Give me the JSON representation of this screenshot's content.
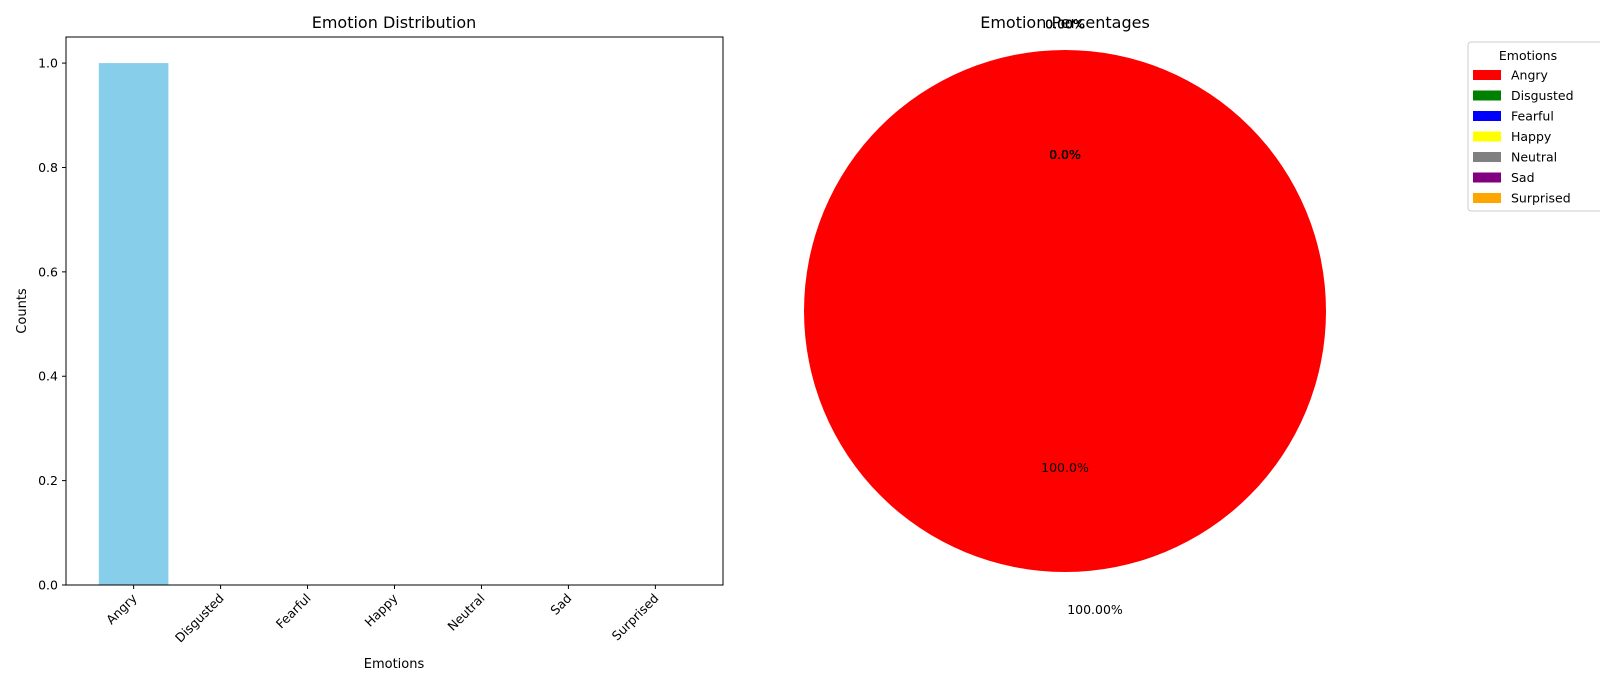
{
  "chart_data": [
    {
      "type": "bar",
      "title": "Emotion Distribution",
      "xlabel": "Emotions",
      "ylabel": "Counts",
      "categories": [
        "Angry",
        "Disgusted",
        "Fearful",
        "Happy",
        "Neutral",
        "Sad",
        "Surprised"
      ],
      "values": [
        1,
        0,
        0,
        0,
        0,
        0,
        0
      ],
      "ylim": [
        0,
        1.05
      ],
      "yticks": [
        0.0,
        0.2,
        0.4,
        0.6,
        0.8,
        1.0
      ],
      "ytick_labels": [
        "0.0",
        "0.2",
        "0.4",
        "0.6",
        "0.8",
        "1.0"
      ],
      "bar_color": "#87ceeb",
      "grid": false
    },
    {
      "type": "pie",
      "title": "Emotion Percentages",
      "labels": [
        "Angry",
        "Disgusted",
        "Fearful",
        "Happy",
        "Neutral",
        "Sad",
        "Surprised"
      ],
      "values": [
        100,
        0,
        0,
        0,
        0,
        0,
        0
      ],
      "colors": [
        "#ff0000",
        "#008000",
        "#0000ff",
        "#ffff00",
        "#808080",
        "#800080",
        "#ffa500"
      ],
      "pct_labels": [
        "100.0%",
        "0.0%",
        "0.0%",
        "0.0%",
        "0.0%",
        "0.0%",
        "0.0%"
      ],
      "outer_labels": [
        "100.00%",
        "0.00%",
        "0.00%",
        "0.00%",
        "0.00%",
        "0.00%",
        "0.00%"
      ],
      "legend_title": "Emotions",
      "legend_entries": [
        "Angry",
        "Disgusted",
        "Fearful",
        "Happy",
        "Neutral",
        "Sad",
        "Surprised"
      ],
      "legend_position": "right"
    }
  ]
}
